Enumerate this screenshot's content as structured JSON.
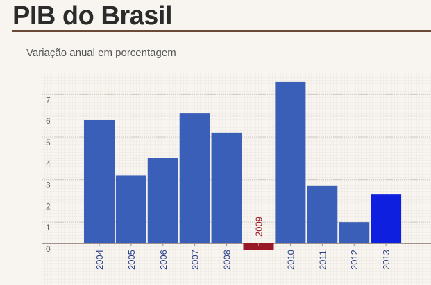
{
  "page": {
    "title": "PIB do Brasil",
    "subtitle": "Variação anual em porcentagem"
  },
  "colors": {
    "bar": "#3a5fb8",
    "bar_highlight": "#0f1fe0",
    "bar_negative": "#991726",
    "label_default": "#2b3f8a",
    "label_negative": "#991726",
    "grid": "#cfc7c0",
    "background": "#f8f5f0"
  },
  "chart_data": {
    "type": "bar",
    "title": "PIB do Brasil",
    "subtitle": "Variação anual em porcentagem",
    "categories": [
      "2004",
      "2005",
      "2006",
      "2007",
      "2008",
      "2009",
      "2010",
      "2011",
      "2012",
      "2013"
    ],
    "values": [
      5.8,
      3.2,
      4.0,
      6.1,
      5.2,
      -0.3,
      7.6,
      2.7,
      1.0,
      2.3
    ],
    "highlight": "2013",
    "yticks": [
      0,
      1,
      2,
      3,
      4,
      5,
      6,
      7
    ],
    "ylim": [
      -0.3,
      8
    ],
    "grid": true,
    "xlabel": "",
    "ylabel": ""
  }
}
